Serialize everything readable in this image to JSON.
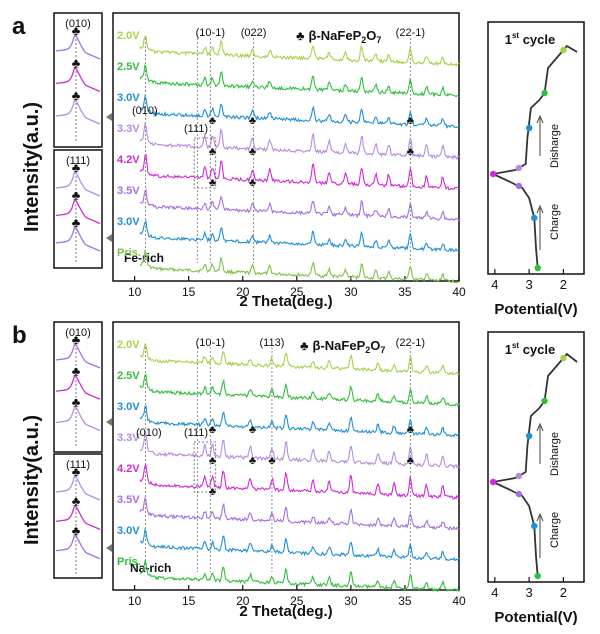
{
  "colors": {
    "volt_2_0": "#a8d14a",
    "volt_2_5": "#2fbf3a",
    "volt_3_0": "#1f8fd6",
    "volt_3_3": "#b88be0",
    "volt_4_2": "#d02ad6",
    "volt_3_5": "#a66ee0",
    "volt_pris": "#7dc24a",
    "curve": "#333333",
    "guide": "#777777"
  },
  "legend": {
    "glyph": "♣",
    "phase_base": "β-NaFeP",
    "sub1": "2",
    "mid": "O",
    "sub2": "7"
  },
  "club": "♣",
  "cycle_sup_num": "1",
  "cycle_sup": "st",
  "cycle_rest": " cycle",
  "charge_label": "Charge",
  "discharge_label": "Disharge",
  "chart_data": [
    {
      "panel": "a",
      "type": "line",
      "sample_label": "Fe-rich",
      "xlabel": "2 Theta(deg.)",
      "ylabel": "Intensity(a.u.)",
      "xlim": [
        8,
        40
      ],
      "x_ticks": [
        10,
        15,
        20,
        25,
        30,
        35,
        40
      ],
      "series_order": [
        "Pris.",
        "3.0V",
        "3.5V",
        "4.2V",
        "3.3V",
        "3.0V",
        "2.5V",
        "2.0V"
      ],
      "series_colors": [
        "#7dc24a",
        "#1f8fd6",
        "#a66ee0",
        "#d02ad6",
        "#b88be0",
        "#1f8fd6",
        "#2fbf3a",
        "#a8d14a"
      ],
      "peak_labels": [
        {
          "text": "(10-1)",
          "x": 17.0
        },
        {
          "text": "(022)",
          "x": 21.0
        },
        {
          "text": "(22-1)",
          "x": 35.5
        },
        {
          "text": "(010)",
          "x": 11.0
        },
        {
          "text": "(111)",
          "x": 15.8
        }
      ],
      "peaks": [
        11,
        16.5,
        17.2,
        18,
        20.9,
        22.5,
        26.5,
        28,
        29.5,
        31,
        32.3,
        33.5,
        35.5,
        37,
        38.5
      ],
      "inset_labels": [
        "(010)",
        "(111)"
      ]
    },
    {
      "panel": "b",
      "type": "line",
      "sample_label": "Na-rich",
      "xlabel": "2 Theta(deg.)",
      "ylabel": "Intensity(a.u.)",
      "xlim": [
        8,
        40
      ],
      "x_ticks": [
        10,
        15,
        20,
        25,
        30,
        35,
        40
      ],
      "series_order": [
        "Pris.",
        "3.0V",
        "3.5V",
        "4.2V",
        "3.3V",
        "3.0V",
        "2.5V",
        "2.0V"
      ],
      "series_colors": [
        "#2fbf3a",
        "#1f8fd6",
        "#a66ee0",
        "#d02ad6",
        "#b88be0",
        "#1f8fd6",
        "#2fbf3a",
        "#a8d14a"
      ],
      "peak_labels": [
        {
          "text": "(10-1)",
          "x": 17.0
        },
        {
          "text": "(113)",
          "x": 22.7
        },
        {
          "text": "(22-1)",
          "x": 35.5
        },
        {
          "text": "(010)",
          "x": 11.0
        },
        {
          "text": "(111)",
          "x": 15.8
        }
      ],
      "peaks": [
        11,
        16.5,
        17.2,
        18.2,
        20.7,
        22.7,
        24,
        26.5,
        28,
        30,
        32.5,
        34,
        35.5,
        37,
        38.5
      ],
      "inset_labels": [
        "(010)",
        "(111)"
      ]
    },
    {
      "panel": "a-cycle",
      "type": "line",
      "xlabel": "Potential(V)",
      "x_ticks": [
        4,
        3,
        2
      ],
      "xlim": [
        4.2,
        1.4
      ]
    },
    {
      "panel": "b-cycle",
      "type": "line",
      "xlabel": "Potential(V)",
      "x_ticks": [
        4,
        3,
        2
      ],
      "xlim": [
        4.2,
        1.4
      ]
    }
  ],
  "panel_letters": [
    "a",
    "b"
  ]
}
